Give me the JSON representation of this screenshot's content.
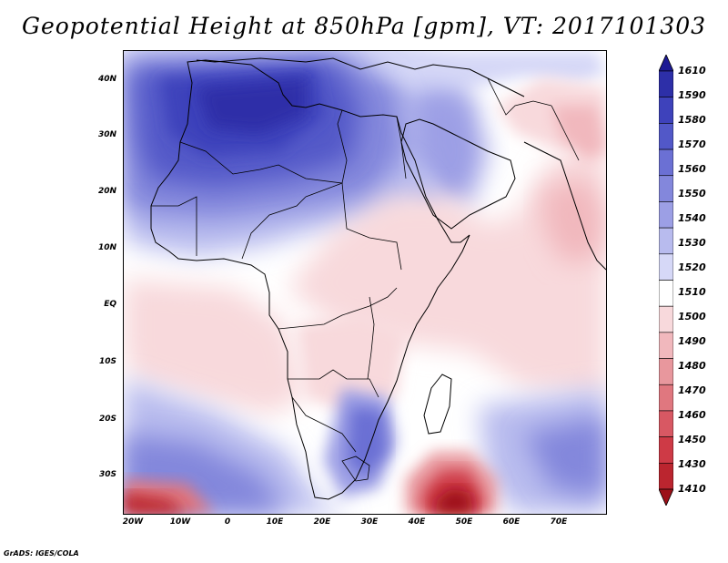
{
  "title": "Geopotential Height at 850hPa [gpm], VT: 2017101303",
  "credit": "GrADS: IGES/COLA",
  "y_axis": [
    "40N",
    "30N",
    "20N",
    "10N",
    "EQ",
    "10S",
    "20S",
    "30S"
  ],
  "x_axis": [
    "20W",
    "10W",
    "0",
    "10E",
    "20E",
    "30E",
    "40E",
    "50E",
    "60E",
    "70E"
  ],
  "colorbar": {
    "levels": [
      "1610",
      "1590",
      "1580",
      "1570",
      "1560",
      "1550",
      "1540",
      "1530",
      "1520",
      "1510",
      "1500",
      "1490",
      "1480",
      "1470",
      "1460",
      "1450",
      "1430",
      "1410"
    ],
    "colors": [
      "#1c1a94",
      "#2d2fa8",
      "#3e42bb",
      "#5258c8",
      "#6b70d4",
      "#8387dc",
      "#9c9fe5",
      "#b8bbee",
      "#d6d8f7",
      "#ffffff",
      "#f8d9dc",
      "#f1b8bd",
      "#e8979d",
      "#e0777f",
      "#d85863",
      "#ce3a46",
      "#bb252f",
      "#9c1018"
    ]
  }
}
